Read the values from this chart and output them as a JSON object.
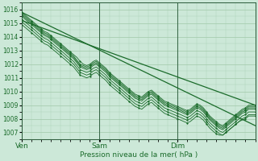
{
  "xlabel": "Pression niveau de la mer( hPa )",
  "bg_color": "#cce8d8",
  "grid_color": "#a0c8a8",
  "line_color": "#1a6b2a",
  "ylim": [
    1006.5,
    1016.5
  ],
  "yticks": [
    1007,
    1008,
    1009,
    1010,
    1011,
    1012,
    1013,
    1014,
    1015,
    1016
  ],
  "xtick_labels": [
    "Ven",
    "Sam",
    "Dim"
  ],
  "xtick_positions": [
    0,
    0.333,
    0.667
  ],
  "xmin": 0.0,
  "xmax": 1.0,
  "straight_line1_x": [
    0.0,
    1.0
  ],
  "straight_line1_y": [
    1015.8,
    1007.5
  ],
  "straight_line2_x": [
    0.0,
    1.0
  ],
  "straight_line2_y": [
    1015.2,
    1009.0
  ],
  "ensemble_series": [
    {
      "x": [
        0.0,
        0.014,
        0.028,
        0.042,
        0.056,
        0.069,
        0.083,
        0.097,
        0.111,
        0.125,
        0.139,
        0.153,
        0.167,
        0.181,
        0.194,
        0.208,
        0.222,
        0.236,
        0.25,
        0.264,
        0.278,
        0.292,
        0.306,
        0.319,
        0.333,
        0.347,
        0.361,
        0.375,
        0.389,
        0.403,
        0.417,
        0.431,
        0.444,
        0.458,
        0.472,
        0.486,
        0.5,
        0.514,
        0.528,
        0.542,
        0.556,
        0.569,
        0.583,
        0.597,
        0.611,
        0.625,
        0.639,
        0.653,
        0.667,
        0.681,
        0.694,
        0.708,
        0.722,
        0.736,
        0.75,
        0.764,
        0.778,
        0.792,
        0.806,
        0.819,
        0.833,
        0.847,
        0.861,
        0.875,
        0.889,
        0.903,
        0.917,
        0.931,
        0.944,
        0.958,
        0.972,
        0.986,
        1.0
      ],
      "y": [
        1015.8,
        1015.6,
        1015.4,
        1015.2,
        1015.0,
        1014.8,
        1014.6,
        1014.4,
        1014.3,
        1014.1,
        1013.9,
        1013.7,
        1013.5,
        1013.3,
        1013.1,
        1012.9,
        1012.7,
        1012.5,
        1012.2,
        1012.0,
        1011.9,
        1012.0,
        1012.2,
        1012.3,
        1012.1,
        1011.9,
        1011.7,
        1011.4,
        1011.2,
        1011.0,
        1010.8,
        1010.6,
        1010.4,
        1010.2,
        1010.0,
        1009.8,
        1009.7,
        1009.6,
        1009.8,
        1010.0,
        1010.1,
        1009.9,
        1009.7,
        1009.5,
        1009.3,
        1009.2,
        1009.1,
        1009.0,
        1008.9,
        1008.8,
        1008.7,
        1008.6,
        1008.7,
        1008.9,
        1009.1,
        1009.0,
        1008.8,
        1008.5,
        1008.2,
        1008.0,
        1007.8,
        1007.6,
        1007.5,
        1007.7,
        1007.9,
        1008.1,
        1008.3,
        1008.5,
        1008.7,
        1008.8,
        1009.0,
        1009.0,
        1009.0
      ]
    },
    {
      "x": [
        0.0,
        0.014,
        0.028,
        0.042,
        0.056,
        0.069,
        0.083,
        0.097,
        0.111,
        0.125,
        0.139,
        0.153,
        0.167,
        0.181,
        0.194,
        0.208,
        0.222,
        0.236,
        0.25,
        0.264,
        0.278,
        0.292,
        0.306,
        0.319,
        0.333,
        0.347,
        0.361,
        0.375,
        0.389,
        0.403,
        0.417,
        0.431,
        0.444,
        0.458,
        0.472,
        0.486,
        0.5,
        0.514,
        0.528,
        0.542,
        0.556,
        0.569,
        0.583,
        0.597,
        0.611,
        0.625,
        0.639,
        0.653,
        0.667,
        0.681,
        0.694,
        0.708,
        0.722,
        0.736,
        0.75,
        0.764,
        0.778,
        0.792,
        0.806,
        0.819,
        0.833,
        0.847,
        0.861,
        0.875,
        0.889,
        0.903,
        0.917,
        0.931,
        0.944,
        0.958,
        0.972,
        0.986,
        1.0
      ],
      "y": [
        1015.7,
        1015.5,
        1015.3,
        1015.1,
        1014.9,
        1014.7,
        1014.5,
        1014.3,
        1014.2,
        1014.0,
        1013.8,
        1013.6,
        1013.4,
        1013.2,
        1013.0,
        1012.8,
        1012.6,
        1012.3,
        1012.0,
        1011.9,
        1011.8,
        1011.9,
        1012.1,
        1012.2,
        1012.0,
        1011.8,
        1011.6,
        1011.3,
        1011.1,
        1010.9,
        1010.7,
        1010.5,
        1010.3,
        1010.1,
        1009.9,
        1009.7,
        1009.6,
        1009.5,
        1009.7,
        1009.9,
        1010.0,
        1009.8,
        1009.6,
        1009.4,
        1009.2,
        1009.1,
        1009.0,
        1008.9,
        1008.8,
        1008.7,
        1008.6,
        1008.5,
        1008.6,
        1008.8,
        1009.0,
        1008.9,
        1008.7,
        1008.4,
        1008.1,
        1007.9,
        1007.7,
        1007.5,
        1007.4,
        1007.6,
        1007.8,
        1008.0,
        1008.2,
        1008.4,
        1008.6,
        1008.7,
        1008.9,
        1008.9,
        1008.9
      ]
    },
    {
      "x": [
        0.0,
        0.014,
        0.028,
        0.042,
        0.056,
        0.069,
        0.083,
        0.097,
        0.111,
        0.125,
        0.139,
        0.153,
        0.167,
        0.181,
        0.194,
        0.208,
        0.222,
        0.236,
        0.25,
        0.264,
        0.278,
        0.292,
        0.306,
        0.319,
        0.333,
        0.347,
        0.361,
        0.375,
        0.389,
        0.403,
        0.417,
        0.431,
        0.444,
        0.458,
        0.472,
        0.486,
        0.5,
        0.514,
        0.528,
        0.542,
        0.556,
        0.569,
        0.583,
        0.597,
        0.611,
        0.625,
        0.639,
        0.653,
        0.667,
        0.681,
        0.694,
        0.708,
        0.722,
        0.736,
        0.75,
        0.764,
        0.778,
        0.792,
        0.806,
        0.819,
        0.833,
        0.847,
        0.861,
        0.875,
        0.889,
        0.903,
        0.917,
        0.931,
        0.944,
        0.958,
        0.972,
        0.986,
        1.0
      ],
      "y": [
        1015.6,
        1015.4,
        1015.2,
        1015.0,
        1014.8,
        1014.6,
        1014.4,
        1014.2,
        1014.1,
        1013.9,
        1013.7,
        1013.5,
        1013.3,
        1013.1,
        1012.9,
        1012.7,
        1012.5,
        1012.2,
        1011.9,
        1011.8,
        1011.7,
        1011.8,
        1012.0,
        1012.1,
        1011.9,
        1011.7,
        1011.5,
        1011.2,
        1011.0,
        1010.8,
        1010.6,
        1010.4,
        1010.2,
        1010.0,
        1009.8,
        1009.6,
        1009.5,
        1009.4,
        1009.6,
        1009.8,
        1009.9,
        1009.7,
        1009.5,
        1009.3,
        1009.1,
        1009.0,
        1008.9,
        1008.8,
        1008.7,
        1008.6,
        1008.5,
        1008.4,
        1008.5,
        1008.7,
        1008.9,
        1008.8,
        1008.6,
        1008.3,
        1008.0,
        1007.8,
        1007.6,
        1007.4,
        1007.3,
        1007.5,
        1007.7,
        1007.9,
        1008.1,
        1008.3,
        1008.5,
        1008.6,
        1008.8,
        1008.8,
        1008.8
      ]
    },
    {
      "x": [
        0.0,
        0.014,
        0.028,
        0.042,
        0.056,
        0.069,
        0.083,
        0.097,
        0.111,
        0.125,
        0.139,
        0.153,
        0.167,
        0.181,
        0.194,
        0.208,
        0.222,
        0.236,
        0.25,
        0.264,
        0.278,
        0.292,
        0.306,
        0.319,
        0.333,
        0.347,
        0.361,
        0.375,
        0.389,
        0.403,
        0.417,
        0.431,
        0.444,
        0.458,
        0.472,
        0.486,
        0.5,
        0.514,
        0.528,
        0.542,
        0.556,
        0.569,
        0.583,
        0.597,
        0.611,
        0.625,
        0.639,
        0.653,
        0.667,
        0.681,
        0.694,
        0.708,
        0.722,
        0.736,
        0.75,
        0.764,
        0.778,
        0.792,
        0.806,
        0.819,
        0.833,
        0.847,
        0.861,
        0.875,
        0.889,
        0.903,
        0.917,
        0.931,
        0.944,
        0.958,
        0.972,
        0.986,
        1.0
      ],
      "y": [
        1015.5,
        1015.3,
        1015.1,
        1014.9,
        1014.7,
        1014.5,
        1014.3,
        1014.1,
        1014.0,
        1013.8,
        1013.6,
        1013.4,
        1013.2,
        1013.0,
        1012.8,
        1012.6,
        1012.4,
        1012.1,
        1011.8,
        1011.7,
        1011.6,
        1011.7,
        1011.9,
        1012.0,
        1011.8,
        1011.6,
        1011.4,
        1011.1,
        1010.9,
        1010.7,
        1010.5,
        1010.3,
        1010.1,
        1009.9,
        1009.7,
        1009.5,
        1009.4,
        1009.3,
        1009.5,
        1009.7,
        1009.8,
        1009.6,
        1009.4,
        1009.2,
        1009.0,
        1008.9,
        1008.8,
        1008.7,
        1008.6,
        1008.5,
        1008.4,
        1008.3,
        1008.4,
        1008.6,
        1008.8,
        1008.7,
        1008.5,
        1008.2,
        1007.9,
        1007.7,
        1007.5,
        1007.3,
        1007.2,
        1007.4,
        1007.6,
        1007.8,
        1008.0,
        1008.2,
        1008.4,
        1008.5,
        1008.7,
        1008.7,
        1008.7
      ]
    },
    {
      "x": [
        0.0,
        0.014,
        0.028,
        0.042,
        0.056,
        0.069,
        0.083,
        0.097,
        0.111,
        0.125,
        0.139,
        0.153,
        0.167,
        0.181,
        0.194,
        0.208,
        0.222,
        0.236,
        0.25,
        0.264,
        0.278,
        0.292,
        0.306,
        0.319,
        0.333,
        0.347,
        0.361,
        0.375,
        0.389,
        0.403,
        0.417,
        0.431,
        0.444,
        0.458,
        0.472,
        0.486,
        0.5,
        0.514,
        0.528,
        0.542,
        0.556,
        0.569,
        0.583,
        0.597,
        0.611,
        0.625,
        0.639,
        0.653,
        0.667,
        0.681,
        0.694,
        0.708,
        0.722,
        0.736,
        0.75,
        0.764,
        0.778,
        0.792,
        0.806,
        0.819,
        0.833,
        0.847,
        0.861,
        0.875,
        0.889,
        0.903,
        0.917,
        0.931,
        0.944,
        0.958,
        0.972,
        0.986,
        1.0
      ],
      "y": [
        1015.3,
        1015.1,
        1014.9,
        1014.7,
        1014.5,
        1014.3,
        1014.1,
        1013.9,
        1013.8,
        1013.6,
        1013.4,
        1013.2,
        1013.0,
        1012.8,
        1012.6,
        1012.4,
        1012.2,
        1011.9,
        1011.6,
        1011.5,
        1011.4,
        1011.5,
        1011.7,
        1011.8,
        1011.6,
        1011.4,
        1011.2,
        1010.9,
        1010.7,
        1010.5,
        1010.3,
        1010.1,
        1009.9,
        1009.7,
        1009.5,
        1009.3,
        1009.2,
        1009.1,
        1009.3,
        1009.5,
        1009.6,
        1009.4,
        1009.2,
        1009.0,
        1008.8,
        1008.7,
        1008.6,
        1008.5,
        1008.4,
        1008.3,
        1008.2,
        1008.1,
        1008.2,
        1008.4,
        1008.6,
        1008.5,
        1008.3,
        1008.0,
        1007.7,
        1007.5,
        1007.3,
        1007.1,
        1007.0,
        1007.2,
        1007.4,
        1007.6,
        1007.8,
        1008.0,
        1008.2,
        1008.3,
        1008.5,
        1008.5,
        1008.5
      ]
    },
    {
      "x": [
        0.0,
        0.014,
        0.028,
        0.042,
        0.056,
        0.069,
        0.083,
        0.097,
        0.111,
        0.125,
        0.139,
        0.153,
        0.167,
        0.181,
        0.194,
        0.208,
        0.222,
        0.236,
        0.25,
        0.264,
        0.278,
        0.292,
        0.306,
        0.319,
        0.333,
        0.347,
        0.361,
        0.375,
        0.389,
        0.403,
        0.417,
        0.431,
        0.444,
        0.458,
        0.472,
        0.486,
        0.5,
        0.514,
        0.528,
        0.542,
        0.556,
        0.569,
        0.583,
        0.597,
        0.611,
        0.625,
        0.639,
        0.653,
        0.667,
        0.681,
        0.694,
        0.708,
        0.722,
        0.736,
        0.75,
        0.764,
        0.778,
        0.792,
        0.806,
        0.819,
        0.833,
        0.847,
        0.861,
        0.875,
        0.889,
        0.903,
        0.917,
        0.931,
        0.944,
        0.958,
        0.972,
        0.986,
        1.0
      ],
      "y": [
        1015.1,
        1014.9,
        1014.7,
        1014.5,
        1014.3,
        1014.1,
        1013.9,
        1013.7,
        1013.6,
        1013.4,
        1013.2,
        1013.0,
        1012.8,
        1012.6,
        1012.4,
        1012.2,
        1012.0,
        1011.7,
        1011.4,
        1011.3,
        1011.2,
        1011.3,
        1011.5,
        1011.6,
        1011.4,
        1011.2,
        1011.0,
        1010.7,
        1010.5,
        1010.3,
        1010.1,
        1009.9,
        1009.7,
        1009.5,
        1009.3,
        1009.1,
        1009.0,
        1008.9,
        1009.1,
        1009.3,
        1009.4,
        1009.2,
        1009.0,
        1008.8,
        1008.6,
        1008.5,
        1008.4,
        1008.3,
        1008.2,
        1008.1,
        1008.0,
        1007.9,
        1008.0,
        1008.2,
        1008.4,
        1008.3,
        1008.1,
        1007.8,
        1007.5,
        1007.3,
        1007.1,
        1006.9,
        1006.8,
        1007.0,
        1007.2,
        1007.4,
        1007.6,
        1007.8,
        1008.0,
        1008.1,
        1008.3,
        1008.3,
        1008.3
      ]
    },
    {
      "x": [
        0.0,
        0.014,
        0.028,
        0.042,
        0.056,
        0.069,
        0.083,
        0.097,
        0.111,
        0.125,
        0.139,
        0.153,
        0.167,
        0.181,
        0.194,
        0.208,
        0.222,
        0.236,
        0.25,
        0.264,
        0.278,
        0.292,
        0.306,
        0.319,
        0.333,
        0.347,
        0.361,
        0.375,
        0.389,
        0.403,
        0.417,
        0.431,
        0.444,
        0.458,
        0.472,
        0.486,
        0.5,
        0.514,
        0.528,
        0.542,
        0.556,
        0.569,
        0.583,
        0.597,
        0.611,
        0.625,
        0.639,
        0.653,
        0.667,
        0.681,
        0.694,
        0.708,
        0.722,
        0.736,
        0.75,
        0.764,
        0.778,
        0.792,
        0.806,
        0.819,
        0.833,
        0.847,
        0.861,
        0.875,
        0.889,
        0.903,
        0.917,
        0.931,
        0.944,
        0.958,
        0.972,
        0.986,
        1.0
      ],
      "y": [
        1014.9,
        1014.7,
        1014.5,
        1014.3,
        1014.1,
        1013.9,
        1013.7,
        1013.5,
        1013.4,
        1013.2,
        1013.0,
        1012.8,
        1012.6,
        1012.4,
        1012.2,
        1012.0,
        1011.8,
        1011.5,
        1011.2,
        1011.1,
        1011.0,
        1011.1,
        1011.3,
        1011.4,
        1011.2,
        1011.0,
        1010.8,
        1010.5,
        1010.3,
        1010.1,
        1009.9,
        1009.7,
        1009.5,
        1009.3,
        1009.1,
        1008.9,
        1008.8,
        1008.7,
        1008.9,
        1009.1,
        1009.2,
        1009.0,
        1008.8,
        1008.6,
        1008.4,
        1008.3,
        1008.2,
        1008.1,
        1008.0,
        1007.9,
        1007.8,
        1007.7,
        1007.8,
        1008.0,
        1008.2,
        1008.1,
        1007.9,
        1007.6,
        1007.3,
        1007.1,
        1006.9,
        1006.8,
        1006.8,
        1007.0,
        1007.2,
        1007.4,
        1007.6,
        1007.8,
        1007.9,
        1008.0,
        1008.2,
        1008.2,
        1008.2
      ]
    }
  ]
}
